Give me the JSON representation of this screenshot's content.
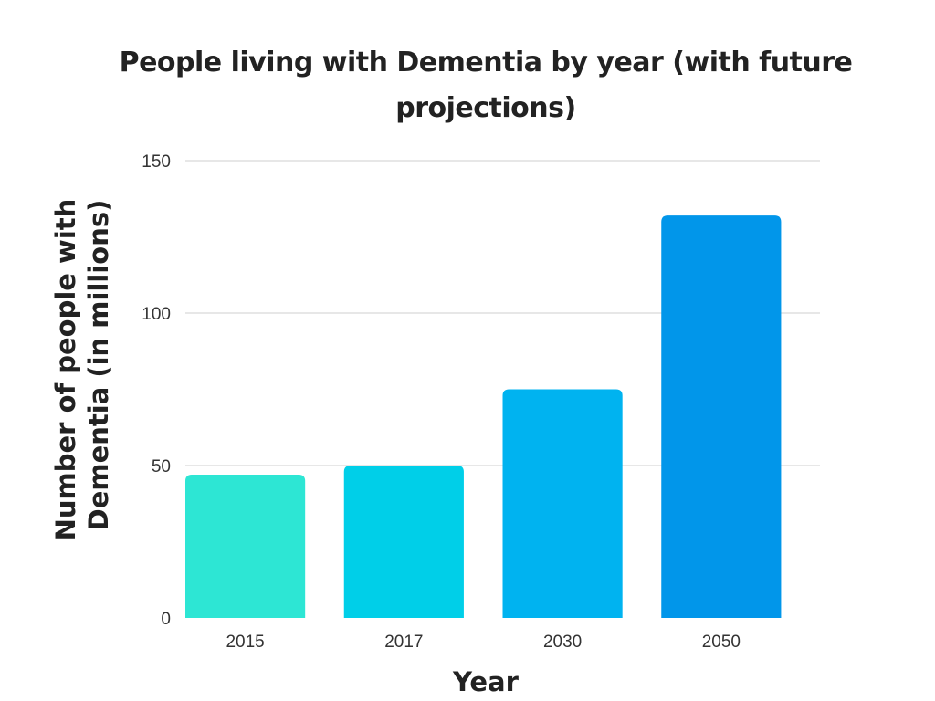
{
  "chart_data": {
    "type": "bar",
    "title": "People living with Dementia by year (with future projections)",
    "xlabel": "Year",
    "ylabel_lines": [
      "Number of people with",
      "Dementia (in millions)"
    ],
    "categories": [
      "2015",
      "2017",
      "2030",
      "2050"
    ],
    "values": [
      47,
      50,
      75,
      132
    ],
    "ylim": [
      0,
      150
    ],
    "yticks": [
      "0",
      "50",
      "100",
      "150"
    ],
    "grid": true,
    "legend": "none",
    "colors": [
      "#2de6d4",
      "#00cfe8",
      "#00b3f0",
      "#0196ea"
    ]
  }
}
